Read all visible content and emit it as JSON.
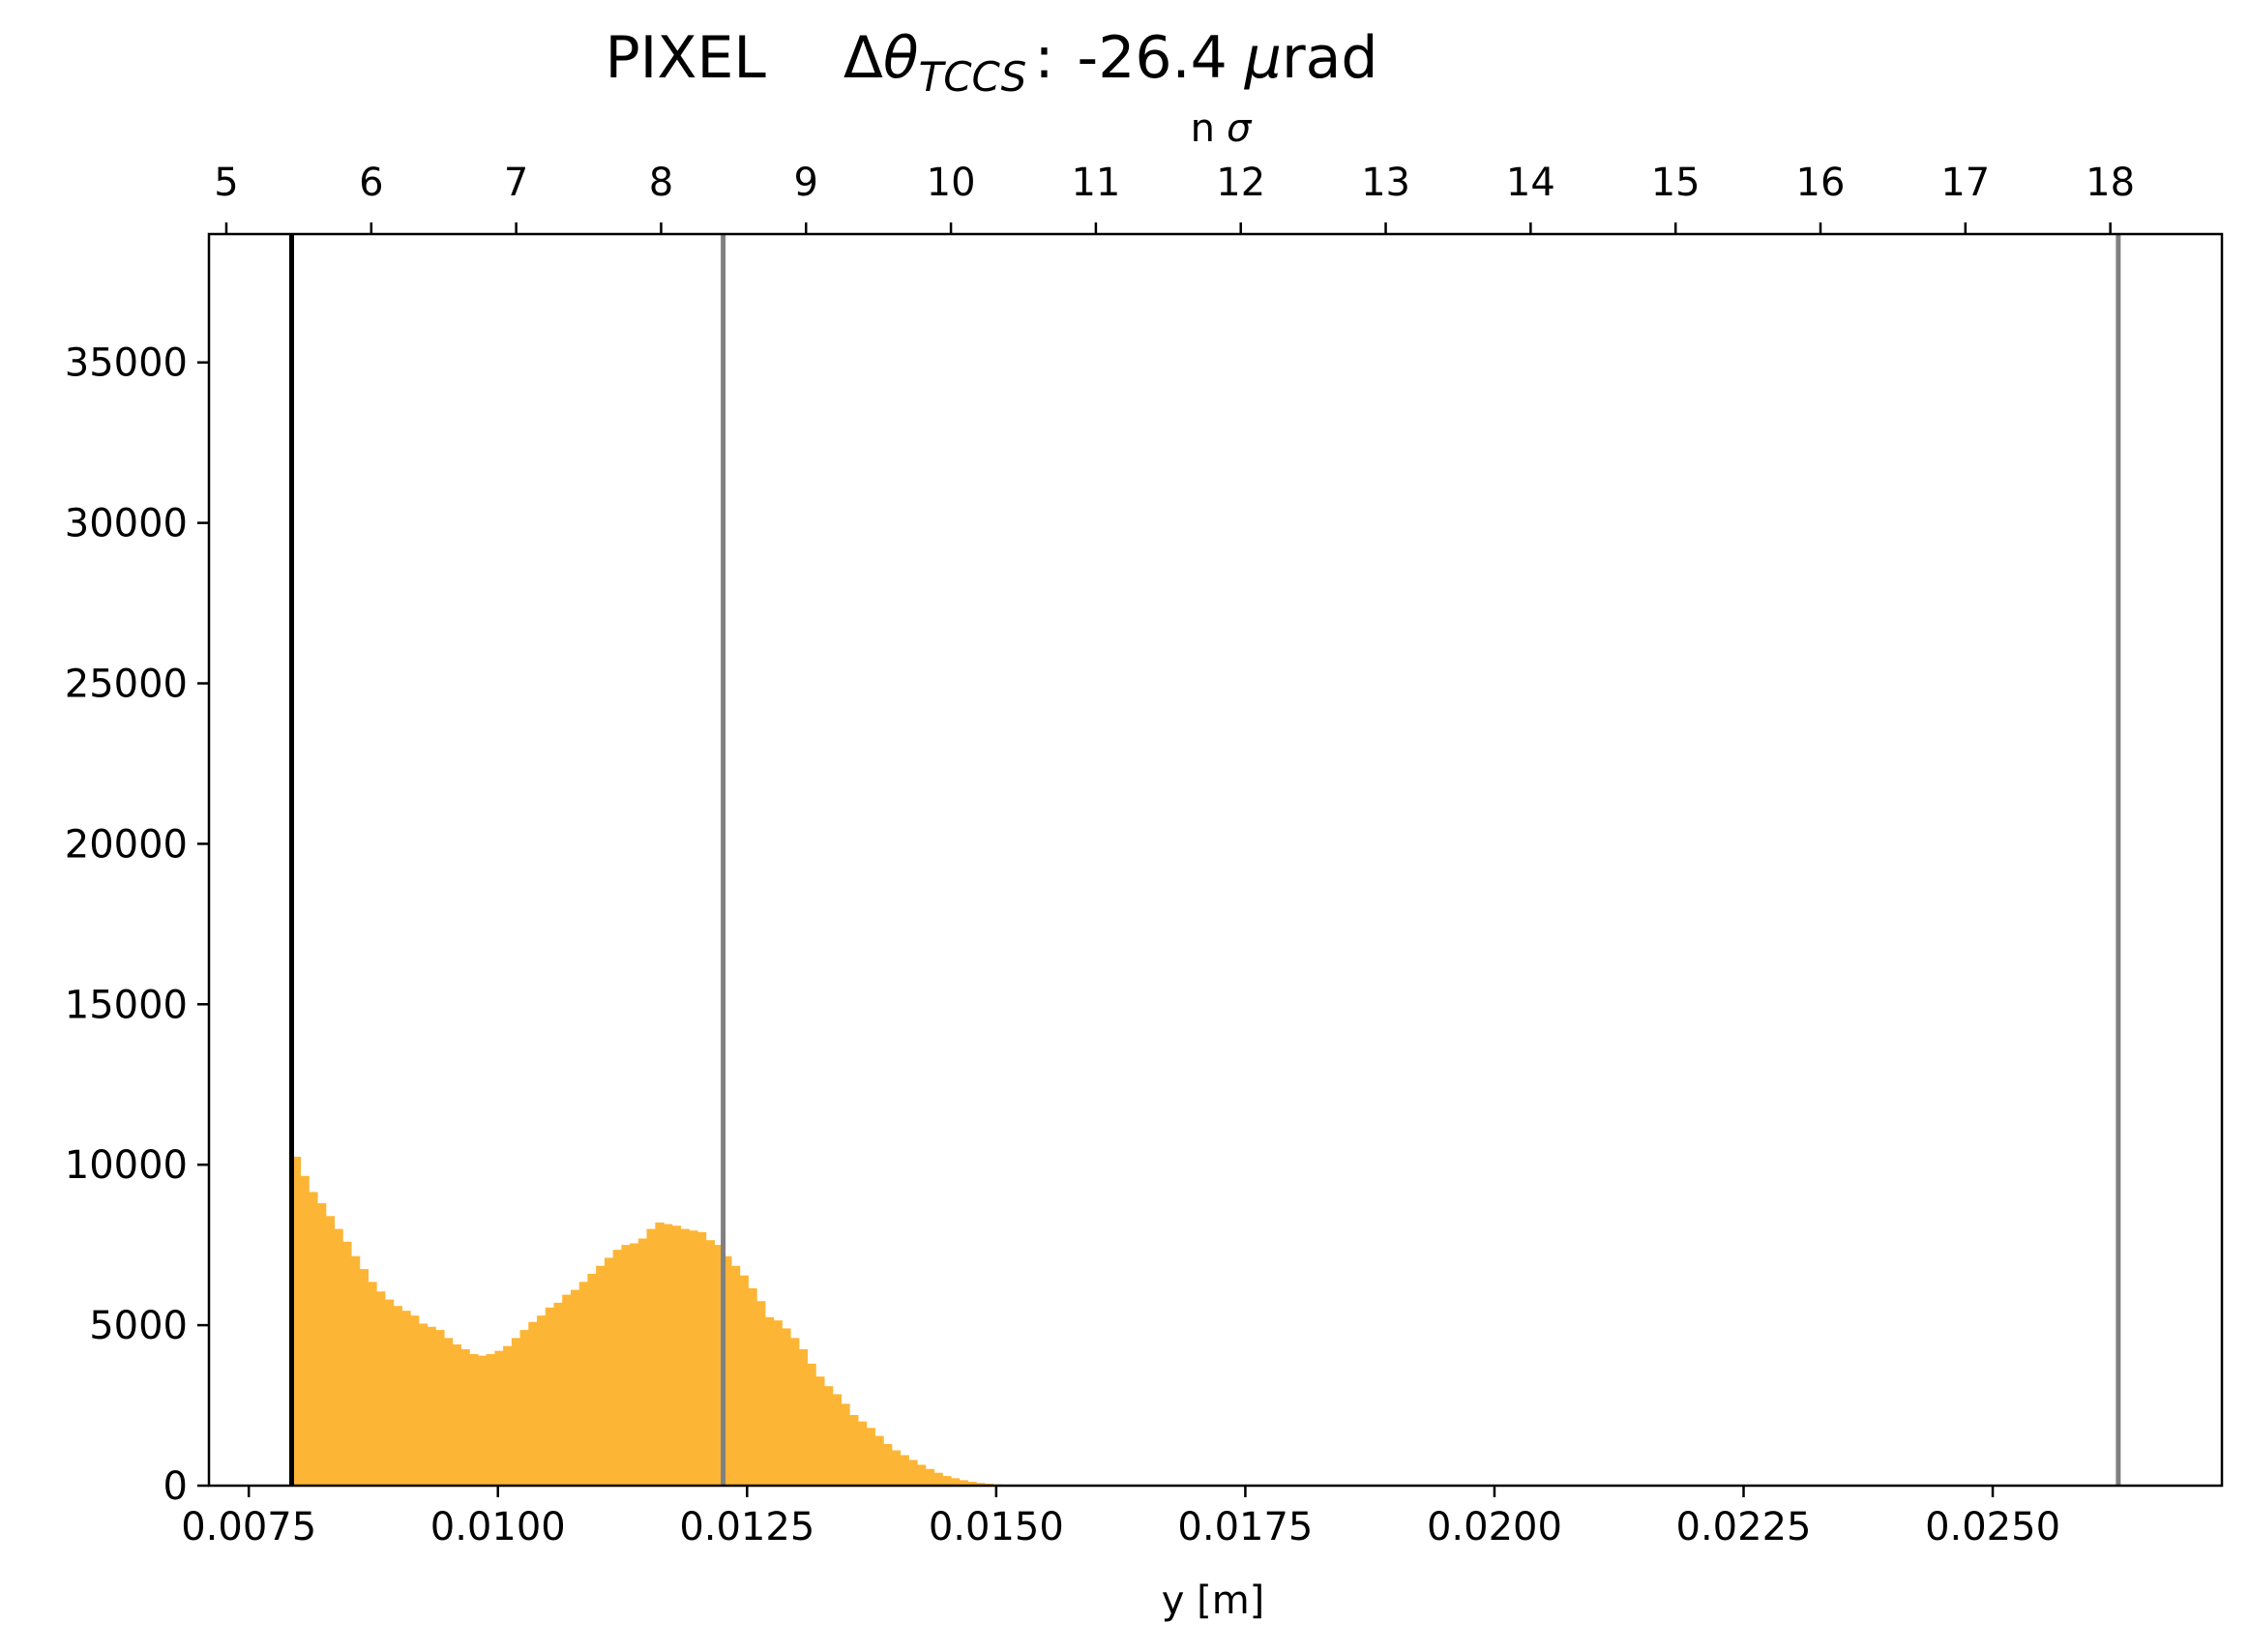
{
  "chart_data": {
    "type": "bar",
    "title": {
      "prefix": "PIXEL",
      "delta": "Δ",
      "theta": "θ",
      "subscript": "TCCS",
      "separator": ":",
      "value": "-26.4",
      "unit_mu": "μ",
      "unit_rest": "rad"
    },
    "xlabel": "y [m]",
    "ylabel": "",
    "top_xlabel": {
      "text": "n",
      "sigma": "σ"
    },
    "xlim": [
      0.0071,
      0.0273
    ],
    "ylim": [
      0,
      39000
    ],
    "nsigma_lim": [
      4.88,
      18.77
    ],
    "xticks": [
      {
        "value": 0.0075,
        "label": "0.0075"
      },
      {
        "value": 0.01,
        "label": "0.0100"
      },
      {
        "value": 0.0125,
        "label": "0.0125"
      },
      {
        "value": 0.015,
        "label": "0.0150"
      },
      {
        "value": 0.0175,
        "label": "0.0175"
      },
      {
        "value": 0.02,
        "label": "0.0200"
      },
      {
        "value": 0.0225,
        "label": "0.0225"
      },
      {
        "value": 0.025,
        "label": "0.0250"
      }
    ],
    "yticks": [
      {
        "value": 0,
        "label": "0"
      },
      {
        "value": 5000,
        "label": "5000"
      },
      {
        "value": 10000,
        "label": "10000"
      },
      {
        "value": 15000,
        "label": "15000"
      },
      {
        "value": 20000,
        "label": "20000"
      },
      {
        "value": 25000,
        "label": "25000"
      },
      {
        "value": 30000,
        "label": "30000"
      },
      {
        "value": 35000,
        "label": "35000"
      }
    ],
    "top_ticks": [
      {
        "value": 5,
        "label": "5"
      },
      {
        "value": 6,
        "label": "6"
      },
      {
        "value": 7,
        "label": "7"
      },
      {
        "value": 8,
        "label": "8"
      },
      {
        "value": 9,
        "label": "9"
      },
      {
        "value": 10,
        "label": "10"
      },
      {
        "value": 11,
        "label": "11"
      },
      {
        "value": 12,
        "label": "12"
      },
      {
        "value": 13,
        "label": "13"
      },
      {
        "value": 14,
        "label": "14"
      },
      {
        "value": 15,
        "label": "15"
      },
      {
        "value": 16,
        "label": "16"
      },
      {
        "value": 17,
        "label": "17"
      },
      {
        "value": 18,
        "label": "18"
      }
    ],
    "grid": false,
    "histogram": {
      "color": "#fdb536",
      "bin_width": 8.48e-05,
      "bins": [
        {
          "x": 0.007932,
          "y": 10250
        },
        {
          "x": 0.008017,
          "y": 9650
        },
        {
          "x": 0.008102,
          "y": 9150
        },
        {
          "x": 0.008187,
          "y": 8800
        },
        {
          "x": 0.008272,
          "y": 8400
        },
        {
          "x": 0.008356,
          "y": 8000
        },
        {
          "x": 0.008441,
          "y": 7600
        },
        {
          "x": 0.008526,
          "y": 7150
        },
        {
          "x": 0.008611,
          "y": 6750
        },
        {
          "x": 0.008695,
          "y": 6350
        },
        {
          "x": 0.00878,
          "y": 6050
        },
        {
          "x": 0.008865,
          "y": 5800
        },
        {
          "x": 0.00895,
          "y": 5600
        },
        {
          "x": 0.009035,
          "y": 5450
        },
        {
          "x": 0.009119,
          "y": 5300
        },
        {
          "x": 0.009204,
          "y": 5050
        },
        {
          "x": 0.009289,
          "y": 4950
        },
        {
          "x": 0.009374,
          "y": 4850
        },
        {
          "x": 0.009458,
          "y": 4600
        },
        {
          "x": 0.009543,
          "y": 4400
        },
        {
          "x": 0.009628,
          "y": 4250
        },
        {
          "x": 0.009713,
          "y": 4100
        },
        {
          "x": 0.009797,
          "y": 4050
        },
        {
          "x": 0.009882,
          "y": 4100
        },
        {
          "x": 0.009967,
          "y": 4200
        },
        {
          "x": 0.010052,
          "y": 4350
        },
        {
          "x": 0.010137,
          "y": 4600
        },
        {
          "x": 0.010221,
          "y": 4850
        },
        {
          "x": 0.010306,
          "y": 5100
        },
        {
          "x": 0.010391,
          "y": 5300
        },
        {
          "x": 0.010476,
          "y": 5550
        },
        {
          "x": 0.01056,
          "y": 5700
        },
        {
          "x": 0.010645,
          "y": 5950
        },
        {
          "x": 0.01073,
          "y": 6100
        },
        {
          "x": 0.010815,
          "y": 6350
        },
        {
          "x": 0.010899,
          "y": 6600
        },
        {
          "x": 0.010984,
          "y": 6850
        },
        {
          "x": 0.011069,
          "y": 7100
        },
        {
          "x": 0.011154,
          "y": 7350
        },
        {
          "x": 0.011239,
          "y": 7500
        },
        {
          "x": 0.011323,
          "y": 7550
        },
        {
          "x": 0.011408,
          "y": 7700
        },
        {
          "x": 0.011493,
          "y": 8000
        },
        {
          "x": 0.011578,
          "y": 8200
        },
        {
          "x": 0.011662,
          "y": 8150
        },
        {
          "x": 0.011747,
          "y": 8100
        },
        {
          "x": 0.011832,
          "y": 8000
        },
        {
          "x": 0.011917,
          "y": 7950
        },
        {
          "x": 0.012001,
          "y": 7900
        },
        {
          "x": 0.012086,
          "y": 7650
        },
        {
          "x": 0.012171,
          "y": 7500
        },
        {
          "x": 0.012256,
          "y": 7150
        },
        {
          "x": 0.012341,
          "y": 6850
        },
        {
          "x": 0.012425,
          "y": 6550
        },
        {
          "x": 0.01251,
          "y": 6150
        },
        {
          "x": 0.012595,
          "y": 5750
        },
        {
          "x": 0.01268,
          "y": 5250
        },
        {
          "x": 0.012764,
          "y": 5150
        },
        {
          "x": 0.012849,
          "y": 4900
        },
        {
          "x": 0.012934,
          "y": 4600
        },
        {
          "x": 0.013019,
          "y": 4250
        },
        {
          "x": 0.013103,
          "y": 3800
        },
        {
          "x": 0.013188,
          "y": 3400
        },
        {
          "x": 0.013273,
          "y": 3100
        },
        {
          "x": 0.013358,
          "y": 2850
        },
        {
          "x": 0.013442,
          "y": 2550
        },
        {
          "x": 0.013527,
          "y": 2200
        },
        {
          "x": 0.013612,
          "y": 2000
        },
        {
          "x": 0.013697,
          "y": 1800
        },
        {
          "x": 0.013782,
          "y": 1550
        },
        {
          "x": 0.013866,
          "y": 1300
        },
        {
          "x": 0.013951,
          "y": 1100
        },
        {
          "x": 0.014036,
          "y": 950
        },
        {
          "x": 0.014121,
          "y": 800
        },
        {
          "x": 0.014205,
          "y": 650
        },
        {
          "x": 0.01429,
          "y": 520
        },
        {
          "x": 0.014375,
          "y": 400
        },
        {
          "x": 0.01446,
          "y": 300
        },
        {
          "x": 0.014544,
          "y": 230
        },
        {
          "x": 0.014629,
          "y": 170
        },
        {
          "x": 0.014714,
          "y": 120
        },
        {
          "x": 0.014799,
          "y": 85
        },
        {
          "x": 0.014883,
          "y": 60
        },
        {
          "x": 0.014968,
          "y": 40
        },
        {
          "x": 0.015053,
          "y": 28
        },
        {
          "x": 0.015138,
          "y": 18
        },
        {
          "x": 0.015223,
          "y": 12
        },
        {
          "x": 0.015307,
          "y": 8
        }
      ]
    },
    "vertical_lines": [
      {
        "name": "black-line",
        "x": 0.00793,
        "color": "#000000"
      },
      {
        "name": "gray-line-1",
        "x": 0.01226,
        "color": "#808080"
      },
      {
        "name": "gray-line-2",
        "x": 0.02626,
        "color": "#808080"
      }
    ]
  }
}
